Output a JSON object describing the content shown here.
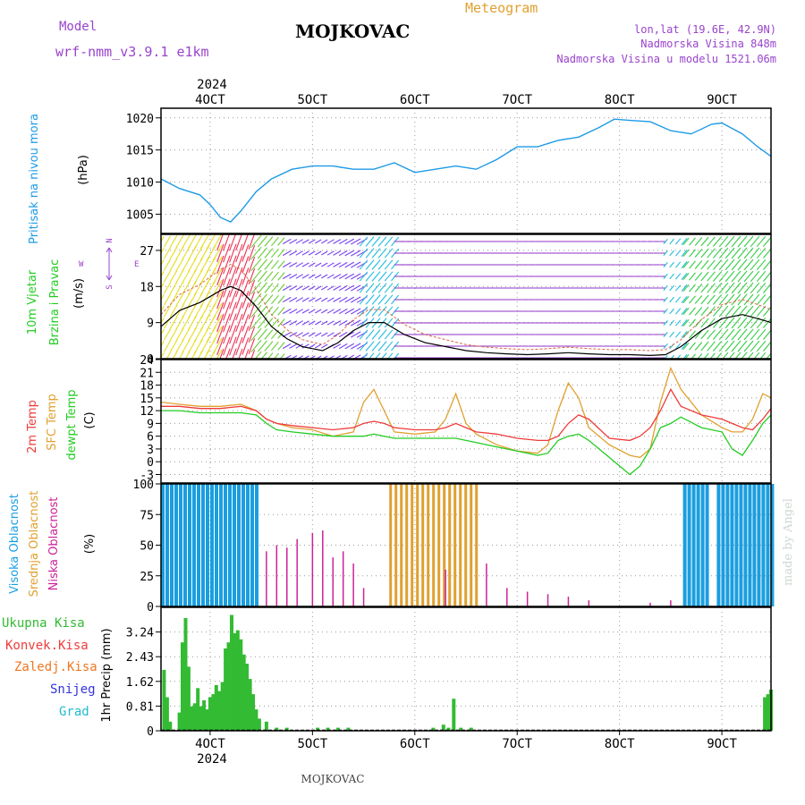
{
  "header": {
    "station_title": "MOJKOVAC",
    "product": "Meteogram",
    "model_label": "Model",
    "model_name": "wrf-nmm_v3.9.1 e1km",
    "coords": "lon,lat (19.6E, 42.9N)",
    "elevation": "Nadmorska Visina 848m",
    "model_elevation": "Nadmorska Visina u modelu 1521.06m",
    "footer_station": "MOJKOVAC",
    "credit": "made by Angel"
  },
  "colors": {
    "pressure": "#1e9be6",
    "temp2m": "#ee3b3b",
    "sfc": "#e0a030",
    "dewpt": "#22cc22",
    "high_cloud": "#1a9ee0",
    "mid_cloud": "#e0a030",
    "low_cloud": "#cc2299",
    "total_precip": "#33bb33",
    "conv_precip": "#ee3b3b",
    "frz_precip": "#ee7722",
    "snow": "#3333dd",
    "graupel": "#22bbcc",
    "wind_label": "#22cc22",
    "compass": "#9944cc"
  },
  "time_axis": {
    "year": "2024",
    "start_day": 3.52,
    "end_day": 9.48,
    "day_ticks": [
      4,
      5,
      6,
      7,
      8,
      9
    ],
    "day_labels": [
      "4OCT",
      "5OCT",
      "6OCT",
      "7OCT",
      "8OCT",
      "9OCT"
    ]
  },
  "panels": {
    "pressure": {
      "label": "Pritisak na nivou mora",
      "unit": "(hPa)",
      "ticks": [
        "1005",
        "1010",
        "1015",
        "1020"
      ]
    },
    "wind": {
      "label_line1": "10m Vjetar",
      "label_line2": "Brzina i Pravac",
      "unit": "(m/s)",
      "ticks": [
        "0",
        "9",
        "18",
        "27"
      ],
      "compass_n": "N",
      "compass_s": "S",
      "compass_e": "E",
      "compass_w": "W"
    },
    "temperature": {
      "label_temp2m": "2m Temp",
      "label_sfc": "SFC Temp",
      "label_dewpt": "dewpt Temp",
      "unit": "(C)",
      "ticks": [
        "-3",
        "0",
        "3",
        "6",
        "9",
        "12",
        "15",
        "18",
        "21",
        "24"
      ]
    },
    "cloud": {
      "label_high": "Visoka Oblacnost",
      "label_mid": "Srednja Oblacnost",
      "label_low": "Niska Oblacnost",
      "unit": "(%)",
      "ticks": [
        "0",
        "25",
        "50",
        "75",
        "100"
      ]
    },
    "precip": {
      "label_total": "Ukupna Kisa",
      "label_conv": "Konvek.Kisa",
      "label_frz": "Zaledj.Kisa",
      "label_snow": "Snijeg",
      "label_graupel": "Grad",
      "unit": "1hr Precip (mm)",
      "ticks": [
        "0",
        "0.81",
        "1.62",
        "2.43",
        "3.24"
      ]
    }
  },
  "chart_data": [
    {
      "type": "line",
      "name": "Pritisak na nivou mora",
      "ylim": [
        1002,
        1021.5
      ],
      "x": [
        3.52,
        3.7,
        3.9,
        4.0,
        4.1,
        4.2,
        4.3,
        4.45,
        4.6,
        4.8,
        5.0,
        5.2,
        5.4,
        5.6,
        5.8,
        6.0,
        6.2,
        6.4,
        6.6,
        6.8,
        7.0,
        7.2,
        7.4,
        7.6,
        7.8,
        7.95,
        8.1,
        8.3,
        8.5,
        8.7,
        8.9,
        9.0,
        9.2,
        9.35,
        9.48
      ],
      "y": [
        1010.5,
        1009,
        1008,
        1006.5,
        1004.5,
        1003.8,
        1005.5,
        1008.5,
        1010.5,
        1012,
        1012.5,
        1012.5,
        1012,
        1012,
        1013,
        1011.5,
        1012,
        1012.5,
        1012,
        1013.5,
        1015.5,
        1015.5,
        1016.5,
        1017,
        1018.5,
        1019.8,
        1019.6,
        1019.4,
        1018,
        1017.5,
        1019,
        1019.2,
        1017.5,
        1015.5,
        1014
      ]
    },
    {
      "type": "line",
      "name": "10m Vjetar Brzina",
      "ylim": [
        0,
        31
      ],
      "x": [
        3.52,
        3.7,
        3.9,
        4.1,
        4.2,
        4.3,
        4.45,
        4.6,
        4.75,
        4.9,
        5.0,
        5.1,
        5.25,
        5.4,
        5.55,
        5.7,
        5.9,
        6.1,
        6.3,
        6.5,
        6.7,
        6.9,
        7.1,
        7.3,
        7.5,
        7.7,
        7.9,
        8.1,
        8.3,
        8.45,
        8.6,
        8.8,
        9.0,
        9.2,
        9.35,
        9.48
      ],
      "y": [
        8,
        12,
        14,
        17,
        18,
        17,
        13,
        8,
        5,
        3,
        2.5,
        2,
        4,
        7,
        9,
        9,
        6,
        4,
        3,
        2,
        1.5,
        1.2,
        1,
        1.2,
        1.5,
        1.2,
        1,
        1,
        0.8,
        1,
        3,
        7,
        10,
        11,
        10,
        9
      ],
      "direction_bands": [
        {
          "x": [
            3.52,
            4.1
          ],
          "color": "#e6dd22"
        },
        {
          "x": [
            4.1,
            4.45
          ],
          "color": "#ee3355"
        },
        {
          "x": [
            4.45,
            4.75
          ],
          "color": "#66cc33"
        },
        {
          "x": [
            4.75,
            5.5
          ],
          "color": "#7744ee"
        },
        {
          "x": [
            5.5,
            5.85
          ],
          "color": "#22bbdd"
        },
        {
          "x": [
            5.85,
            8.45
          ],
          "color": "#9944cc"
        },
        {
          "x": [
            8.45,
            8.65
          ],
          "color": "#22bbdd"
        },
        {
          "x": [
            8.65,
            9.48
          ],
          "color": "#33cc44"
        }
      ]
    },
    {
      "type": "line",
      "name": "Temperatura",
      "ylim": [
        -5,
        24
      ],
      "x": [
        3.52,
        3.7,
        3.9,
        4.1,
        4.3,
        4.45,
        4.55,
        4.65,
        4.8,
        5.0,
        5.2,
        5.4,
        5.5,
        5.6,
        5.7,
        5.8,
        6.0,
        6.2,
        6.3,
        6.4,
        6.5,
        6.6,
        6.8,
        7.0,
        7.2,
        7.3,
        7.4,
        7.5,
        7.6,
        7.7,
        7.9,
        8.1,
        8.2,
        8.3,
        8.4,
        8.5,
        8.6,
        8.8,
        9.0,
        9.1,
        9.2,
        9.3,
        9.4,
        9.48
      ],
      "series": [
        {
          "name": "2m Temp",
          "values": [
            13,
            13,
            12.5,
            12.5,
            13,
            12,
            10,
            9,
            8.5,
            8,
            7.5,
            8,
            9,
            9.5,
            9,
            8,
            7.5,
            7.5,
            8,
            9,
            8,
            7,
            6.5,
            5.5,
            5,
            5,
            6,
            9,
            11,
            10,
            5.5,
            5,
            6,
            8,
            12,
            17,
            13,
            11,
            10,
            9,
            8,
            7.5,
            10,
            12.5
          ]
        },
        {
          "name": "SFC Temp",
          "values": [
            14,
            13.5,
            13,
            13,
            13.5,
            12,
            10,
            9,
            8,
            7.5,
            6,
            7,
            14,
            17,
            12,
            7,
            6.5,
            7,
            10,
            16,
            9,
            6.5,
            4,
            2.5,
            2,
            4,
            12,
            18.5,
            15,
            8,
            4,
            1.5,
            1,
            3,
            14,
            22,
            17,
            11,
            8,
            7,
            7,
            10,
            16,
            15
          ]
        },
        {
          "name": "dewpt Temp",
          "values": [
            12,
            12,
            11.5,
            11.5,
            11.5,
            11,
            9,
            7.5,
            7,
            6.5,
            6,
            6,
            6,
            6.5,
            6,
            5.5,
            5.5,
            5.5,
            5.5,
            5.5,
            5,
            4.5,
            3.5,
            2.5,
            1.5,
            2,
            5,
            6,
            6.5,
            5,
            1,
            -3,
            -1,
            3,
            8,
            9,
            10.5,
            8,
            7,
            3,
            1.5,
            5,
            9,
            11
          ]
        }
      ]
    },
    {
      "type": "bar",
      "name": "Oblacnost",
      "ylim": [
        0,
        100
      ],
      "segments": [
        {
          "series": "Visoka Oblacnost",
          "x": [
            3.52,
            4.45
          ],
          "value": 100
        },
        {
          "series": "Visoka Oblacnost",
          "x": [
            8.62,
            8.85
          ],
          "value": 100
        },
        {
          "series": "Visoka Oblacnost",
          "x": [
            8.95,
            9.48
          ],
          "value": 100
        },
        {
          "series": "Srednja Oblacnost",
          "x": [
            5.75,
            6.6
          ],
          "value": 100
        }
      ],
      "low_spikes_x": [
        4.55,
        4.65,
        4.75,
        4.85,
        5.0,
        5.1,
        5.2,
        5.3,
        5.4,
        5.5,
        6.3,
        6.7,
        6.9,
        7.1,
        7.3,
        7.5,
        7.7,
        8.3,
        8.5
      ],
      "low_spikes_y": [
        45,
        50,
        48,
        55,
        60,
        62,
        40,
        45,
        35,
        15,
        30,
        35,
        15,
        12,
        10,
        8,
        5,
        3,
        5
      ]
    },
    {
      "type": "bar",
      "name": "1hr Precip",
      "ylim": [
        0,
        4.05
      ],
      "series": [
        {
          "name": "Ukupna Kisa",
          "x": [
            3.55,
            3.58,
            3.61,
            3.7,
            3.73,
            3.76,
            3.79,
            3.82,
            3.85,
            3.88,
            3.91,
            3.94,
            3.97,
            4.0,
            4.03,
            4.06,
            4.09,
            4.12,
            4.15,
            4.18,
            4.21,
            4.24,
            4.27,
            4.3,
            4.33,
            4.36,
            4.39,
            4.42,
            4.45,
            4.48,
            4.55,
            4.65,
            4.75,
            5.05,
            5.15,
            5.25,
            5.35,
            6.18,
            6.28,
            6.33,
            6.38,
            6.45,
            6.55,
            9.42,
            9.45,
            9.48
          ],
          "values": [
            2.0,
            1.1,
            0.3,
            0.6,
            2.9,
            3.7,
            2.1,
            0.8,
            0.9,
            1.4,
            0.8,
            1.0,
            0.7,
            1.1,
            1.2,
            1.5,
            1.3,
            1.6,
            2.7,
            2.9,
            3.8,
            3.2,
            3.3,
            3.0,
            2.5,
            2.2,
            1.7,
            1.2,
            0.7,
            0.4,
            0.3,
            0.1,
            0.1,
            0.1,
            0.1,
            0.1,
            0.1,
            0.1,
            0.2,
            0.1,
            1.05,
            0.1,
            0.1,
            1.1,
            1.2,
            1.35
          ]
        }
      ]
    }
  ]
}
